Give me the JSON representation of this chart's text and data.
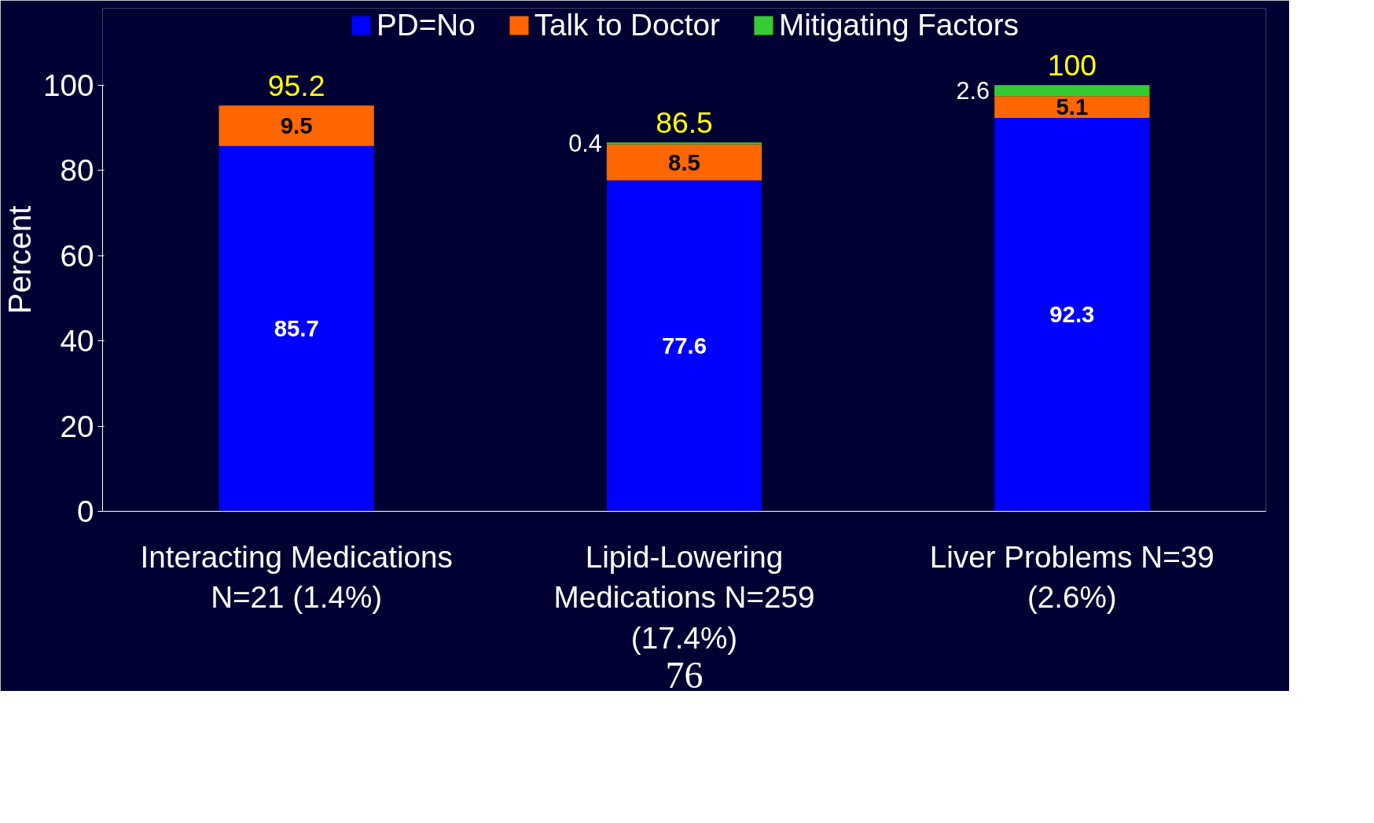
{
  "chart_data": {
    "type": "bar",
    "stacked": true,
    "ylabel": "Percent",
    "categories": [
      "Interacting Medications\nN=21 (1.4%)",
      "Lipid-Lowering\nMedications N=259\n(17.4%)",
      "Liver Problems N=39\n(2.6%)"
    ],
    "series": [
      {
        "name": "PD=No",
        "color": "#0000ff",
        "values": [
          85.7,
          77.6,
          92.3
        ]
      },
      {
        "name": "Talk to Doctor",
        "color": "#ff6600",
        "values": [
          9.5,
          8.5,
          5.1
        ]
      },
      {
        "name": "Mitigating Factors",
        "color": "#33cc33",
        "values": [
          null,
          0.4,
          2.6
        ]
      }
    ],
    "totals": [
      "95.2",
      "86.5",
      "100"
    ],
    "data_labels": true,
    "ylim": [
      0,
      100
    ],
    "yticks": [
      0,
      20,
      40,
      60,
      80,
      100
    ],
    "grid": false,
    "legend": "top",
    "annotations": [
      "76"
    ]
  }
}
